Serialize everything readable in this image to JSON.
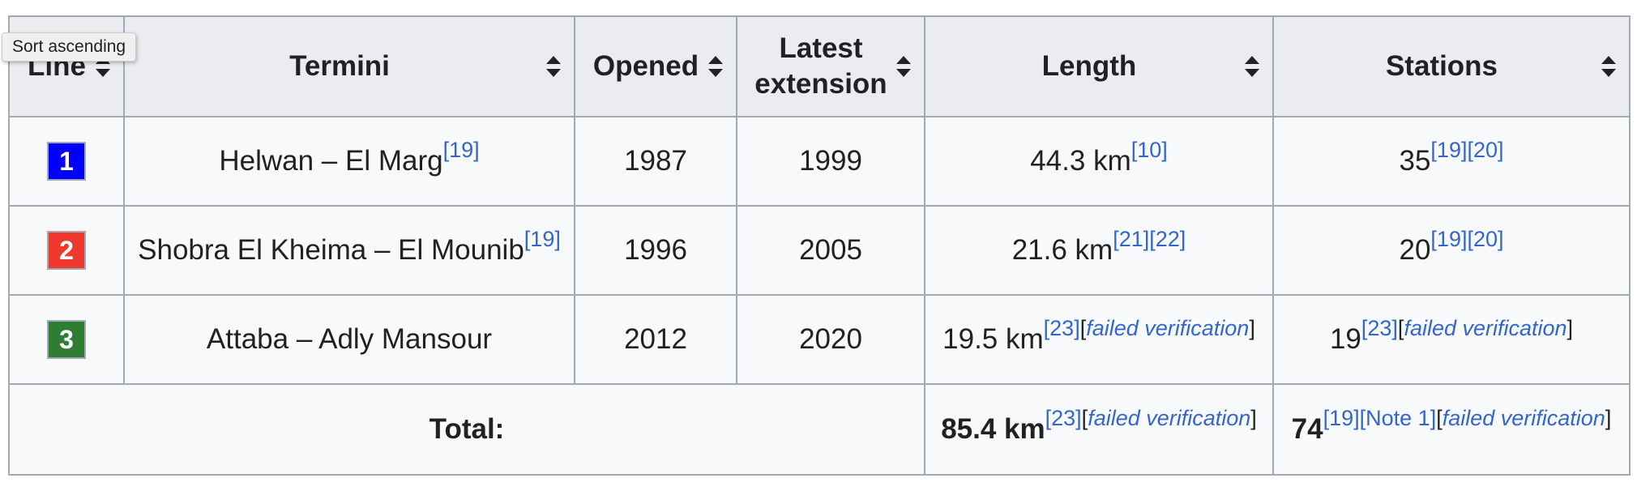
{
  "tooltip": "Sort ascending",
  "headers": {
    "line": "Line",
    "termini": "Termini",
    "opened": "Opened",
    "latest_ext_1": "Latest",
    "latest_ext_2": "extension",
    "length": "Length",
    "stations": "Stations"
  },
  "rows": [
    {
      "line": "1",
      "line_color": "#0000ff",
      "termini": "Helwan – El Marg",
      "termini_refs": [
        "[19]"
      ],
      "opened": "1987",
      "latest_extension": "1999",
      "length": "44.3 km",
      "length_refs": [
        "[10]"
      ],
      "stations": "35",
      "stations_refs": [
        "[19]",
        "[20]"
      ]
    },
    {
      "line": "2",
      "line_color": "#ee3a2e",
      "termini": "Shobra El Kheima – El Mounib",
      "termini_refs": [
        "[19]"
      ],
      "opened": "1996",
      "latest_extension": "2005",
      "length": "21.6 km",
      "length_refs": [
        "[21]",
        "[22]"
      ],
      "stations": "20",
      "stations_refs": [
        "[19]",
        "[20]"
      ]
    },
    {
      "line": "3",
      "line_color": "#2e7d32",
      "termini": "Attaba – Adly Mansour",
      "opened": "2012",
      "latest_extension": "2020",
      "length": "19.5 km",
      "length_ref": "[23]",
      "length_fv": "failed verification",
      "stations": "19",
      "stations_ref": "[23]",
      "stations_fv": "failed verification"
    }
  ],
  "total": {
    "label": "Total:",
    "length": "85.4 km",
    "length_ref": "[23]",
    "length_fv": "failed verification",
    "stations": "74",
    "stations_refs": [
      "[19]",
      "[Note 1]"
    ],
    "stations_fv": "failed verification"
  },
  "bracket_open": "[",
  "bracket_close": "]"
}
